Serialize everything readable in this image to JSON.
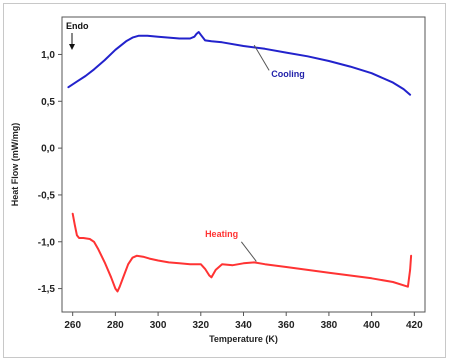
{
  "chart_data": {
    "type": "line",
    "xlabel": "Temperature (K)",
    "ylabel": "Heat Flow (mW/mg)",
    "xlim": [
      255,
      425
    ],
    "ylim": [
      -1.75,
      1.4
    ],
    "xticks": [
      260,
      280,
      300,
      320,
      340,
      360,
      380,
      400,
      420
    ],
    "yticks": [
      -1.5,
      -1.0,
      -0.5,
      0.0,
      0.5,
      1.0
    ],
    "ytick_labels": [
      "-1,5",
      "-1,0",
      "-0,5",
      "0,0",
      "0,5",
      "1,0"
    ],
    "grid": false,
    "series": [
      {
        "name": "Cooling",
        "color": "#2222cc",
        "x": [
          258,
          262,
          266,
          270,
          275,
          280,
          285,
          288,
          291,
          295,
          300,
          305,
          310,
          315,
          317,
          318,
          319,
          320,
          322,
          325,
          330,
          340,
          350,
          360,
          370,
          380,
          390,
          400,
          410,
          415,
          418
        ],
        "y": [
          0.65,
          0.71,
          0.77,
          0.84,
          0.94,
          1.05,
          1.14,
          1.18,
          1.2,
          1.2,
          1.19,
          1.18,
          1.17,
          1.17,
          1.19,
          1.22,
          1.24,
          1.21,
          1.15,
          1.14,
          1.13,
          1.09,
          1.06,
          1.02,
          0.98,
          0.93,
          0.87,
          0.8,
          0.7,
          0.63,
          0.57
        ]
      },
      {
        "name": "Heating",
        "color": "#ff3333",
        "x": [
          260,
          261,
          262,
          263,
          265,
          268,
          270,
          272,
          275,
          278,
          280,
          281,
          282,
          284,
          286,
          288,
          290,
          293,
          296,
          300,
          305,
          310,
          315,
          320,
          322,
          324,
          325,
          327,
          330,
          335,
          340,
          345,
          350,
          360,
          370,
          380,
          390,
          400,
          410,
          417,
          418,
          418.5
        ],
        "y": [
          -0.7,
          -0.82,
          -0.93,
          -0.96,
          -0.96,
          -0.97,
          -1.0,
          -1.08,
          -1.22,
          -1.38,
          -1.5,
          -1.53,
          -1.48,
          -1.36,
          -1.24,
          -1.17,
          -1.15,
          -1.16,
          -1.18,
          -1.2,
          -1.22,
          -1.23,
          -1.24,
          -1.24,
          -1.29,
          -1.36,
          -1.38,
          -1.3,
          -1.24,
          -1.25,
          -1.23,
          -1.22,
          -1.24,
          -1.27,
          -1.3,
          -1.33,
          -1.36,
          -1.39,
          -1.43,
          -1.48,
          -1.3,
          -1.15
        ]
      }
    ],
    "annotations": {
      "endo": "Endo",
      "cooling": "Cooling",
      "heating": "Heating"
    }
  }
}
